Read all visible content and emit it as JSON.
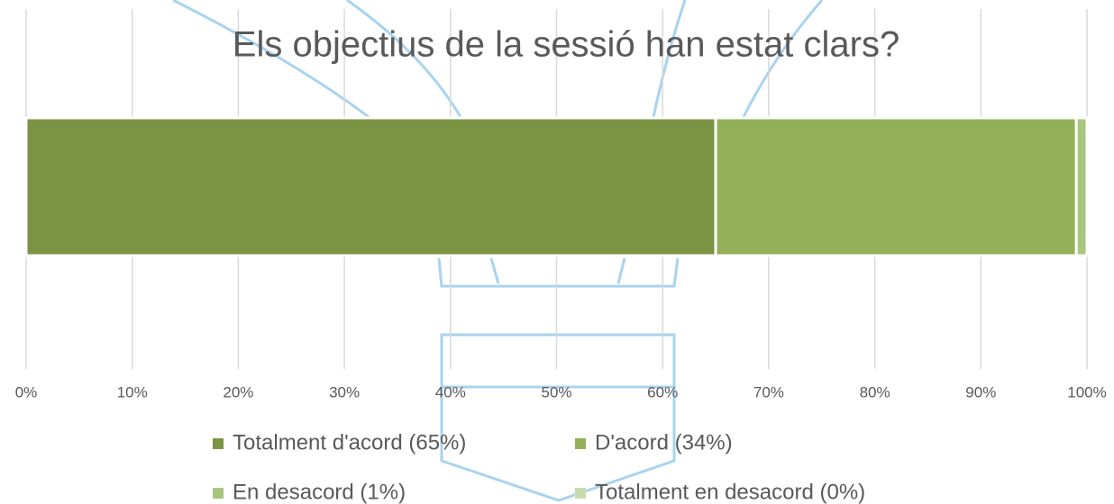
{
  "chart_data": {
    "type": "stacked_barh",
    "title": "Els objectius de la sessió han estat clars?",
    "categories": [
      null
    ],
    "series": [
      {
        "name": "Totalment d'acord (65%)",
        "color": "#7a9444",
        "values": [
          65
        ]
      },
      {
        "name": "D'acord (34%)",
        "color": "#93b058",
        "values": [
          34
        ]
      },
      {
        "name": "En desacord (1%)",
        "color": "#a8c67d",
        "values": [
          1
        ]
      },
      {
        "name": "Totalment en desacord (0%)",
        "color": "#c8dbb0",
        "values": [
          0
        ]
      }
    ],
    "xlim": [
      0,
      100
    ],
    "xticks": [
      {
        "value": 0,
        "label": "0%"
      },
      {
        "value": 10,
        "label": "10%"
      },
      {
        "value": 20,
        "label": "20%"
      },
      {
        "value": 30,
        "label": "30%"
      },
      {
        "value": 40,
        "label": "40%"
      },
      {
        "value": 50,
        "label": "50%"
      },
      {
        "value": 60,
        "label": "60%"
      },
      {
        "value": 70,
        "label": "70%"
      },
      {
        "value": 80,
        "label": "80%"
      },
      {
        "value": 90,
        "label": "90%"
      },
      {
        "value": 100,
        "label": "100%"
      }
    ],
    "grid": true,
    "legend": "bottom"
  }
}
